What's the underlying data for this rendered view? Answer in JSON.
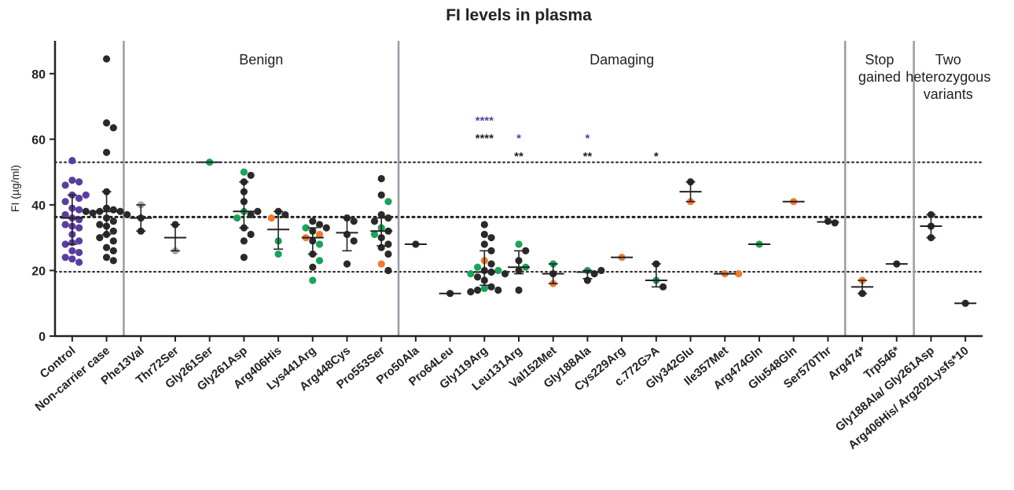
{
  "chart_data": {
    "type": "scatter",
    "title": "FI levels in plasma",
    "ylabel": "FI (µg/ml)",
    "ylim": [
      0,
      90
    ],
    "yticks": [
      0,
      20,
      40,
      60,
      80
    ],
    "reference_lines": [
      {
        "y": 53,
        "style": "dotted"
      },
      {
        "y": 36.3,
        "style": "dotted-bold"
      },
      {
        "y": 19.6,
        "style": "dotted"
      }
    ],
    "colors": {
      "control": "#5a3e9e",
      "black": "#2a2a2a",
      "green": "#1aa35a",
      "orange": "#ee7b30",
      "grey": "#a8a8a8",
      "sig_blue": "#5a3e9e",
      "sig_black": "#222222",
      "separator": "#9a9aa6"
    },
    "categories": [
      "Control",
      "Non-carrier case",
      "Phe13Val",
      "Thr72Ser",
      "Gly261Ser",
      "Gly261Asp",
      "Arg406His",
      "Lys441Arg",
      "Arg448Cys",
      "Pro553Ser",
      "Pro50Ala",
      "Pro64Leu",
      "Gly119Arg",
      "Leu131Arg",
      "Val152Met",
      "Gly188Ala",
      "Cys229Arg",
      "c.772G>A",
      "Gly342Glu",
      "Ile357Met",
      "Arg474Gln",
      "Glu548Gln",
      "Ser570Thr",
      "Arg474*",
      "Trp546*",
      "Gly188Ala/ Gly261Asp",
      "Arg406His/ Arg202Lysfs*10"
    ],
    "regions": [
      {
        "label": "Benign",
        "from": 2,
        "to": 9
      },
      {
        "label": "Damaging",
        "from": 10,
        "to": 22
      },
      {
        "label": "Stop gained",
        "lines": [
          "Stop",
          "gained"
        ],
        "from": 23,
        "to": 24
      },
      {
        "label": "Two heterozygous variants",
        "lines": [
          "Two",
          "heterozygous",
          "variants"
        ],
        "from": 25,
        "to": 26
      }
    ],
    "groups": [
      {
        "category": "Control",
        "points": [
          {
            "y": 53.5,
            "c": "control"
          },
          {
            "y": 47.5,
            "c": "control"
          },
          {
            "y": 47,
            "c": "control"
          },
          {
            "y": 46,
            "c": "control"
          },
          {
            "y": 43,
            "c": "control"
          },
          {
            "y": 43,
            "c": "control"
          },
          {
            "y": 42,
            "c": "control"
          },
          {
            "y": 41,
            "c": "control"
          },
          {
            "y": 39,
            "c": "control"
          },
          {
            "y": 38.5,
            "c": "control"
          },
          {
            "y": 37,
            "c": "control"
          },
          {
            "y": 36,
            "c": "control"
          },
          {
            "y": 35.5,
            "c": "control"
          },
          {
            "y": 34,
            "c": "control"
          },
          {
            "y": 33.5,
            "c": "control"
          },
          {
            "y": 33,
            "c": "control"
          },
          {
            "y": 31,
            "c": "control"
          },
          {
            "y": 29,
            "c": "control"
          },
          {
            "y": 28.5,
            "c": "control"
          },
          {
            "y": 28,
            "c": "control"
          },
          {
            "y": 26,
            "c": "control"
          },
          {
            "y": 25.5,
            "c": "control"
          },
          {
            "y": 24,
            "c": "control"
          },
          {
            "y": 23.5,
            "c": "control"
          },
          {
            "y": 22.5,
            "c": "control"
          }
        ],
        "median": 36,
        "q1": 28,
        "q3": 43
      },
      {
        "category": "Non-carrier case",
        "points": [
          {
            "y": 84.5,
            "c": "black"
          },
          {
            "y": 65,
            "c": "black"
          },
          {
            "y": 63.5,
            "c": "black"
          },
          {
            "y": 56,
            "c": "black"
          },
          {
            "y": 44,
            "c": "black"
          },
          {
            "y": 39,
            "c": "black"
          },
          {
            "y": 38.5,
            "c": "black"
          },
          {
            "y": 38,
            "c": "black"
          },
          {
            "y": 38,
            "c": "black"
          },
          {
            "y": 38,
            "c": "black"
          },
          {
            "y": 37.5,
            "c": "black"
          },
          {
            "y": 37,
            "c": "black"
          },
          {
            "y": 36,
            "c": "black"
          },
          {
            "y": 35,
            "c": "black"
          },
          {
            "y": 34,
            "c": "black"
          },
          {
            "y": 33.5,
            "c": "black"
          },
          {
            "y": 32,
            "c": "black"
          },
          {
            "y": 31,
            "c": "black"
          },
          {
            "y": 30,
            "c": "black"
          },
          {
            "y": 29,
            "c": "black"
          },
          {
            "y": 27,
            "c": "black"
          },
          {
            "y": 26,
            "c": "black"
          },
          {
            "y": 24,
            "c": "black"
          },
          {
            "y": 23,
            "c": "black"
          }
        ],
        "median": 38,
        "q1": 31,
        "q3": 44
      },
      {
        "category": "Phe13Val",
        "points": [
          {
            "y": 40,
            "c": "grey"
          },
          {
            "y": 36,
            "c": "black"
          },
          {
            "y": 32,
            "c": "black"
          }
        ],
        "median": 36,
        "q1": 32,
        "q3": 40
      },
      {
        "category": "Thr72Ser",
        "points": [
          {
            "y": 34,
            "c": "black"
          },
          {
            "y": 26,
            "c": "grey"
          }
        ],
        "median": 30,
        "q1": 26,
        "q3": 34
      },
      {
        "category": "Gly261Ser",
        "points": [
          {
            "y": 53,
            "c": "green"
          }
        ],
        "median": 53,
        "q1": 53,
        "q3": 53
      },
      {
        "category": "Gly261Asp",
        "points": [
          {
            "y": 50,
            "c": "green"
          },
          {
            "y": 49,
            "c": "black"
          },
          {
            "y": 47,
            "c": "black"
          },
          {
            "y": 44,
            "c": "black"
          },
          {
            "y": 41,
            "c": "black"
          },
          {
            "y": 38,
            "c": "green"
          },
          {
            "y": 38,
            "c": "black"
          },
          {
            "y": 37,
            "c": "black"
          },
          {
            "y": 36,
            "c": "green"
          },
          {
            "y": 33,
            "c": "black"
          },
          {
            "y": 31,
            "c": "black"
          },
          {
            "y": 29,
            "c": "black"
          },
          {
            "y": 24,
            "c": "black"
          }
        ],
        "median": 38,
        "q1": 33,
        "q3": 47
      },
      {
        "category": "Arg406His",
        "points": [
          {
            "y": 38,
            "c": "black"
          },
          {
            "y": 37,
            "c": "black"
          },
          {
            "y": 36,
            "c": "orange"
          },
          {
            "y": 29,
            "c": "green"
          },
          {
            "y": 25,
            "c": "green"
          }
        ],
        "median": 32.5,
        "q1": 26.5,
        "q3": 38
      },
      {
        "category": "Lys441Arg",
        "points": [
          {
            "y": 35,
            "c": "black"
          },
          {
            "y": 34,
            "c": "black"
          },
          {
            "y": 33,
            "c": "green"
          },
          {
            "y": 33,
            "c": "black"
          },
          {
            "y": 32,
            "c": "black"
          },
          {
            "y": 31,
            "c": "orange"
          },
          {
            "y": 30,
            "c": "orange"
          },
          {
            "y": 29,
            "c": "black"
          },
          {
            "y": 28,
            "c": "green"
          },
          {
            "y": 25,
            "c": "black"
          },
          {
            "y": 23,
            "c": "green"
          },
          {
            "y": 21,
            "c": "black"
          },
          {
            "y": 17,
            "c": "green"
          }
        ],
        "median": 30,
        "q1": 25,
        "q3": 33
      },
      {
        "category": "Arg448Cys",
        "points": [
          {
            "y": 36,
            "c": "black"
          },
          {
            "y": 35,
            "c": "black"
          },
          {
            "y": 31,
            "c": "black"
          },
          {
            "y": 29,
            "c": "black"
          },
          {
            "y": 22,
            "c": "black"
          }
        ],
        "median": 31.5,
        "q1": 26,
        "q3": 36
      },
      {
        "category": "Pro553Ser",
        "points": [
          {
            "y": 48,
            "c": "black"
          },
          {
            "y": 43,
            "c": "black"
          },
          {
            "y": 41,
            "c": "green"
          },
          {
            "y": 37,
            "c": "black"
          },
          {
            "y": 36,
            "c": "black"
          },
          {
            "y": 35,
            "c": "black"
          },
          {
            "y": 33,
            "c": "green"
          },
          {
            "y": 32,
            "c": "black"
          },
          {
            "y": 31,
            "c": "green"
          },
          {
            "y": 30,
            "c": "black"
          },
          {
            "y": 28,
            "c": "black"
          },
          {
            "y": 27,
            "c": "black"
          },
          {
            "y": 25,
            "c": "black"
          },
          {
            "y": 22,
            "c": "orange"
          },
          {
            "y": 20,
            "c": "black"
          }
        ],
        "median": 32,
        "q1": 27.5,
        "q3": 36
      },
      {
        "category": "Pro50Ala",
        "points": [
          {
            "y": 28,
            "c": "black"
          }
        ],
        "median": 28,
        "q1": 28,
        "q3": 28
      },
      {
        "category": "Pro64Leu",
        "points": [
          {
            "y": 13,
            "c": "black"
          }
        ],
        "median": 13,
        "q1": 13,
        "q3": 13
      },
      {
        "category": "Gly119Arg",
        "points": [
          {
            "y": 34,
            "c": "black"
          },
          {
            "y": 31,
            "c": "black"
          },
          {
            "y": 30,
            "c": "black"
          },
          {
            "y": 28,
            "c": "black"
          },
          {
            "y": 26,
            "c": "black"
          },
          {
            "y": 23,
            "c": "orange"
          },
          {
            "y": 22,
            "c": "black"
          },
          {
            "y": 21,
            "c": "green"
          },
          {
            "y": 20,
            "c": "black"
          },
          {
            "y": 20,
            "c": "green"
          },
          {
            "y": 19.5,
            "c": "black"
          },
          {
            "y": 19,
            "c": "green"
          },
          {
            "y": 19,
            "c": "black"
          },
          {
            "y": 18,
            "c": "black"
          },
          {
            "y": 17,
            "c": "black"
          },
          {
            "y": 15,
            "c": "black"
          },
          {
            "y": 14.5,
            "c": "green"
          },
          {
            "y": 14,
            "c": "black"
          },
          {
            "y": 14,
            "c": "black"
          },
          {
            "y": 13.5,
            "c": "black"
          }
        ],
        "median": 19.5,
        "q1": 15.5,
        "q3": 26
      },
      {
        "category": "Leu131Arg",
        "points": [
          {
            "y": 28,
            "c": "green"
          },
          {
            "y": 26,
            "c": "black"
          },
          {
            "y": 23,
            "c": "black"
          },
          {
            "y": 21,
            "c": "green"
          },
          {
            "y": 20,
            "c": "black"
          },
          {
            "y": 14,
            "c": "black"
          }
        ],
        "median": 21,
        "q1": 19,
        "q3": 26
      },
      {
        "category": "Val152Met",
        "points": [
          {
            "y": 22,
            "c": "green"
          },
          {
            "y": 19,
            "c": "black"
          },
          {
            "y": 16,
            "c": "orange"
          }
        ],
        "median": 19,
        "q1": 16,
        "q3": 22
      },
      {
        "category": "Gly188Ala",
        "points": [
          {
            "y": 20,
            "c": "green"
          },
          {
            "y": 20,
            "c": "black"
          },
          {
            "y": 19,
            "c": "black"
          },
          {
            "y": 17,
            "c": "black"
          }
        ],
        "median": 19.5,
        "q1": 17.5,
        "q3": 20
      },
      {
        "category": "Cys229Arg",
        "points": [
          {
            "y": 24,
            "c": "orange"
          }
        ],
        "median": 24,
        "q1": 24,
        "q3": 24
      },
      {
        "category": "c.772G>A",
        "points": [
          {
            "y": 22,
            "c": "black"
          },
          {
            "y": 17,
            "c": "green"
          },
          {
            "y": 15,
            "c": "black"
          }
        ],
        "median": 17,
        "q1": 15,
        "q3": 22
      },
      {
        "category": "Gly342Glu",
        "points": [
          {
            "y": 47,
            "c": "black"
          },
          {
            "y": 41,
            "c": "orange"
          }
        ],
        "median": 44,
        "q1": 41,
        "q3": 47
      },
      {
        "category": "Ile357Met",
        "points": [
          {
            "y": 19,
            "c": "orange"
          },
          {
            "y": 19,
            "c": "orange"
          }
        ],
        "median": 19,
        "q1": 19,
        "q3": 19
      },
      {
        "category": "Arg474Gln",
        "points": [
          {
            "y": 28,
            "c": "green"
          }
        ],
        "median": 28,
        "q1": 28,
        "q3": 28
      },
      {
        "category": "Glu548Gln",
        "points": [
          {
            "y": 41,
            "c": "orange"
          }
        ],
        "median": 41,
        "q1": 41,
        "q3": 41
      },
      {
        "category": "Ser570Thr",
        "points": [
          {
            "y": 35,
            "c": "black"
          },
          {
            "y": 34.5,
            "c": "black"
          }
        ],
        "median": 34.8,
        "q1": 34.8,
        "q3": 34.8
      },
      {
        "category": "Arg474*",
        "points": [
          {
            "y": 17,
            "c": "orange"
          },
          {
            "y": 13,
            "c": "black"
          }
        ],
        "median": 15,
        "q1": 13,
        "q3": 17
      },
      {
        "category": "Trp546*",
        "points": [
          {
            "y": 22,
            "c": "black"
          }
        ],
        "median": 22,
        "q1": 22,
        "q3": 22
      },
      {
        "category": "Gly188Ala/ Gly261Asp",
        "points": [
          {
            "y": 37,
            "c": "black"
          },
          {
            "y": 33.5,
            "c": "black"
          },
          {
            "y": 30,
            "c": "black"
          }
        ],
        "median": 33.5,
        "q1": 30,
        "q3": 37
      },
      {
        "category": "Arg406His/ Arg202Lysfs*10",
        "points": [
          {
            "y": 10,
            "c": "black"
          }
        ],
        "median": 10,
        "q1": 10,
        "q3": 10
      }
    ],
    "annotations": [
      {
        "category": "Gly119Arg",
        "y": 66,
        "text": "****",
        "c": "sig_blue"
      },
      {
        "category": "Gly119Arg",
        "y": 60.5,
        "text": "****",
        "c": "sig_black"
      },
      {
        "category": "Leu131Arg",
        "y": 60.5,
        "text": "*",
        "c": "sig_blue"
      },
      {
        "category": "Leu131Arg",
        "y": 55,
        "text": "**",
        "c": "sig_black"
      },
      {
        "category": "Gly188Ala",
        "y": 60.5,
        "text": "*",
        "c": "sig_blue"
      },
      {
        "category": "Gly188Ala",
        "y": 55,
        "text": "**",
        "c": "sig_black"
      },
      {
        "category": "c.772G>A",
        "y": 55,
        "text": "*",
        "c": "sig_black"
      }
    ]
  }
}
